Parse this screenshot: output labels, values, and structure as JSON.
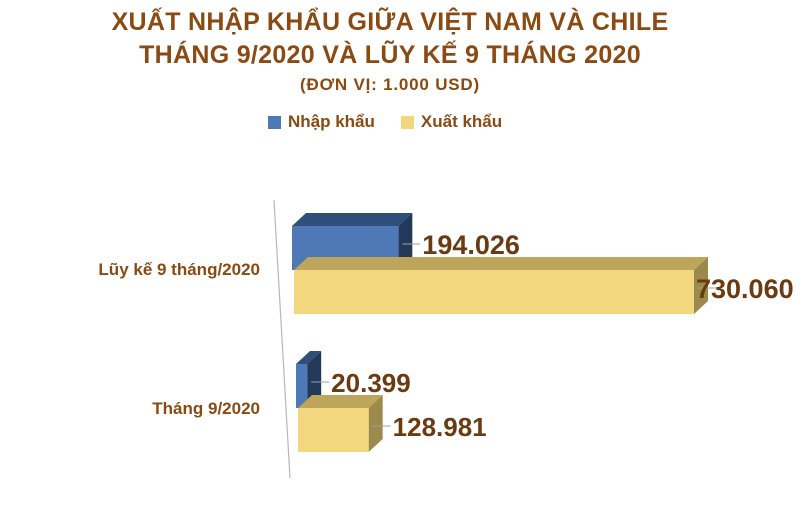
{
  "title_line1": "XUẤT NHẬP KHẨU GIỮA VIỆT NAM VÀ CHILE",
  "title_line2": "THÁNG 9/2020 VÀ LŨY KẾ 9 THÁNG 2020",
  "unit": "(ĐƠN VỊ: 1.000 USD)",
  "colors": {
    "title": "#8a4a12",
    "import_front": "#4f79b6",
    "import_top": "#2f4f7a",
    "import_side": "#23395a",
    "export_front": "#f2d77e",
    "export_top": "#bda55c",
    "export_side": "#9c8a4c"
  },
  "chart_data": {
    "type": "bar",
    "orientation": "horizontal",
    "categories": [
      "Lũy kế 9 tháng/2020",
      "Tháng 9/2020"
    ],
    "series": [
      {
        "name": "Nhập khẩu",
        "values": [
          194026,
          20399
        ],
        "labels": [
          "194.026",
          "20.399"
        ]
      },
      {
        "name": "Xuất khẩu",
        "values": [
          730060,
          128981
        ],
        "labels": [
          "730.060",
          "128.981"
        ]
      }
    ],
    "legend": "top",
    "grid": false,
    "three_d": true
  }
}
